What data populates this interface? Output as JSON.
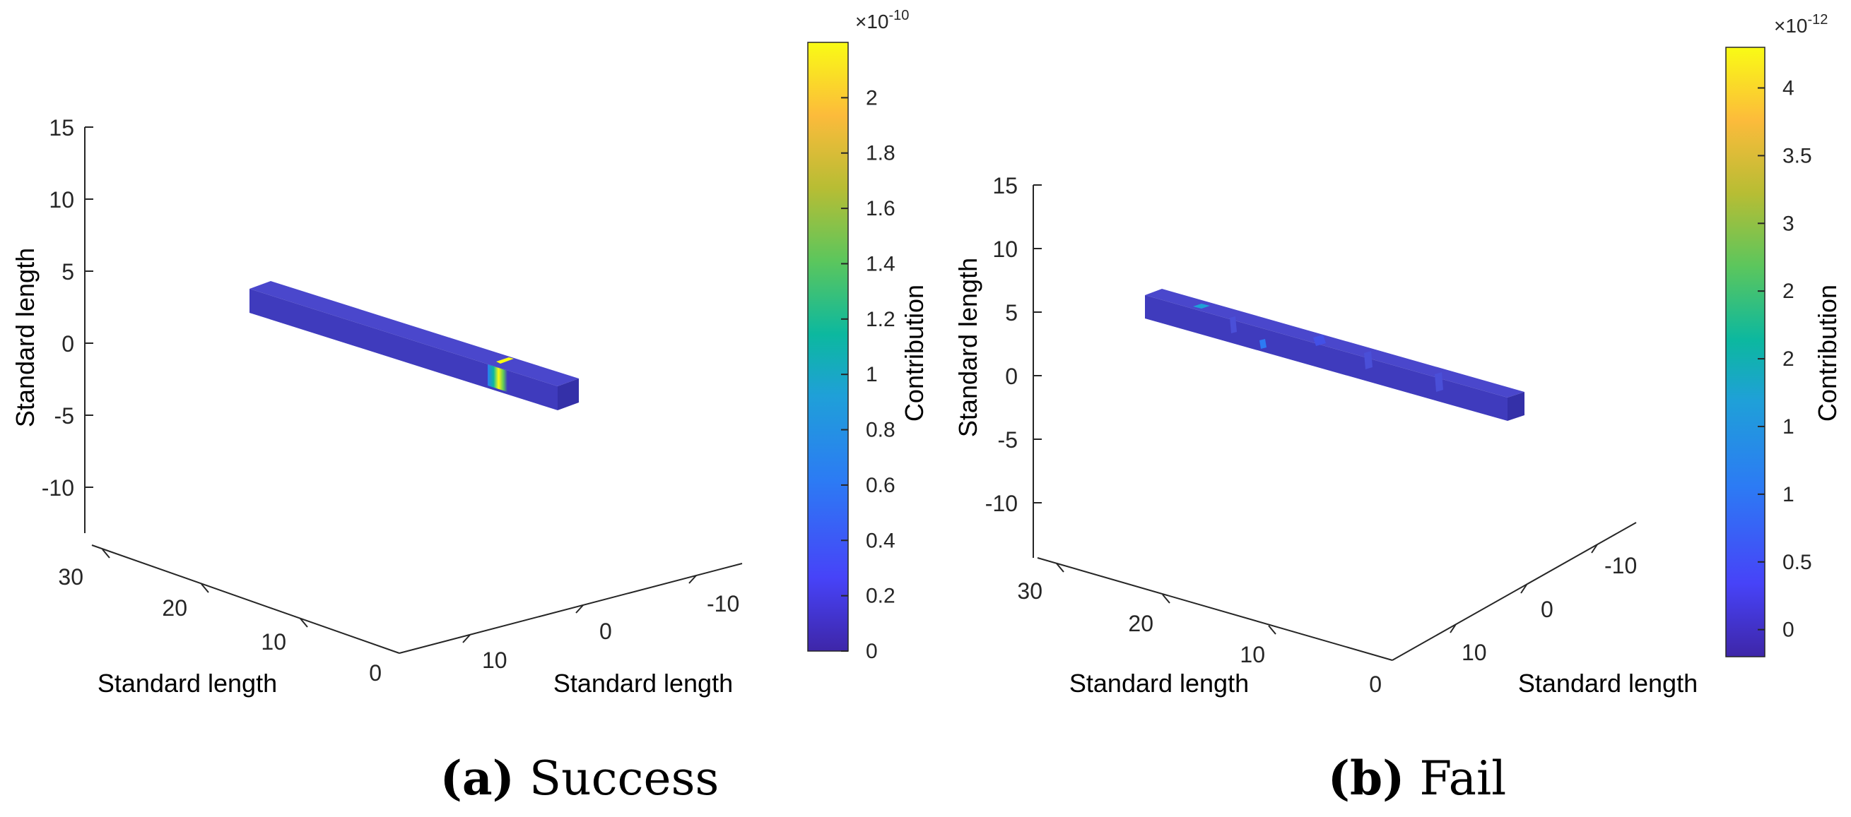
{
  "colors": {
    "background": "#ffffff",
    "axis": "#262626",
    "bar_face": "#3f3bbd",
    "bar_top": "#4a47cc",
    "bar_side": "#3430a8",
    "parula": [
      "#3e26a8",
      "#4743f8",
      "#2c7bf4",
      "#1fa0d8",
      "#0cb89f",
      "#5bc65d",
      "#b7bd34",
      "#fcbb3b",
      "#f9fb15"
    ]
  },
  "chart_data": [
    {
      "type": "heatmap",
      "subtype": "3d-surface-bar",
      "caption_label": "(a)",
      "caption_text": "Success",
      "zlabel": "Standard length",
      "xlabel": "Standard length",
      "ylabel": "Standard length",
      "z_ticks": [
        "15",
        "10",
        "5",
        "0",
        "-5",
        "-10"
      ],
      "y_ticks": [
        "30",
        "20",
        "10",
        "0"
      ],
      "x_ticks": [
        "-10",
        "0",
        "10"
      ],
      "zlim": [
        -13,
        15
      ],
      "colorbar": {
        "label": "Contribution",
        "multiplier": "×10",
        "exponent": "-10",
        "ticks": [
          "2",
          "1.8",
          "1.6",
          "1.4",
          "1.2",
          "1",
          "0.8",
          "0.6",
          "0.4",
          "0.2",
          "0"
        ],
        "range": [
          0,
          2.2
        ]
      },
      "hotspots": [
        {
          "position_along_bar": 0.74,
          "value": 2.1
        }
      ]
    },
    {
      "type": "heatmap",
      "subtype": "3d-surface-bar",
      "caption_label": "(b)",
      "caption_text": "Fail",
      "zlabel": "Standard length",
      "xlabel": "Standard length",
      "ylabel": "Standard length",
      "z_ticks": [
        "15",
        "10",
        "5",
        "0",
        "-5",
        "-10"
      ],
      "y_ticks": [
        "30",
        "20",
        "10",
        "0"
      ],
      "x_ticks": [
        "-10",
        "0",
        "10"
      ],
      "zlim": [
        -13,
        15
      ],
      "colorbar": {
        "label": "Contribution",
        "multiplier": "×10",
        "exponent": "-12",
        "ticks": [
          "4",
          "3.5",
          "3",
          "2",
          "2",
          "1",
          "1",
          "0.5",
          "0"
        ],
        "range": [
          -0.2,
          4.3
        ]
      },
      "hotspots": [
        {
          "position_along_bar": 0.14,
          "value": 1.2
        },
        {
          "position_along_bar": 0.32,
          "value": 0.8
        },
        {
          "position_along_bar": 0.45,
          "value": 0.6
        }
      ]
    }
  ]
}
